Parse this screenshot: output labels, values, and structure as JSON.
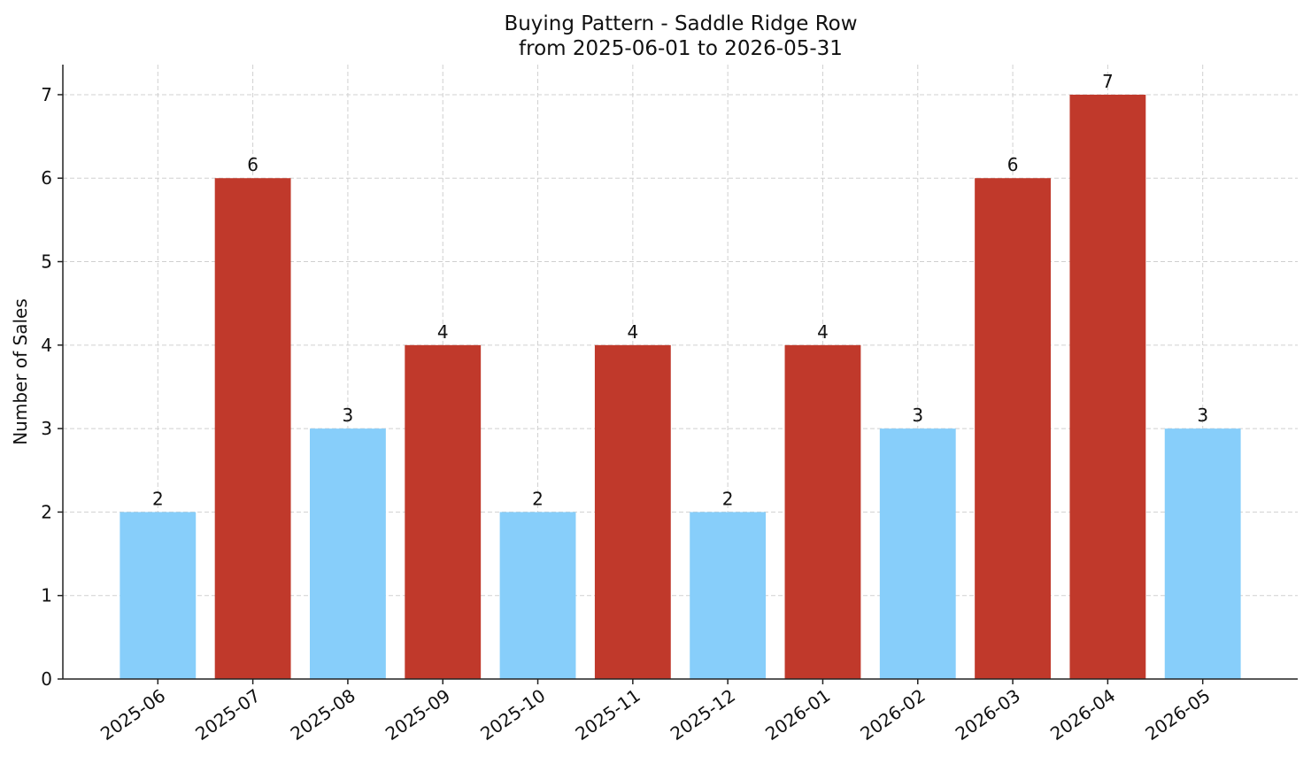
{
  "chart_data": {
    "type": "bar",
    "title": "Buying Pattern - Saddle Ridge Row",
    "subtitle": "from 2025-06-01 to 2026-05-31",
    "y_label": "Number of Sales",
    "categories": [
      "2025-06",
      "2025-07",
      "2025-08",
      "2025-09",
      "2025-10",
      "2025-11",
      "2025-12",
      "2026-01",
      "2026-02",
      "2026-03",
      "2026-04",
      "2026-05"
    ],
    "values": [
      2,
      6,
      3,
      4,
      2,
      4,
      2,
      4,
      3,
      6,
      7,
      3
    ],
    "colors": [
      "#87cefa",
      "#c0392b",
      "#87cefa",
      "#c0392b",
      "#87cefa",
      "#c0392b",
      "#87cefa",
      "#c0392b",
      "#87cefa",
      "#c0392b",
      "#c0392b",
      "#87cefa"
    ],
    "ylim": [
      0,
      7.36
    ],
    "yticks": [
      0,
      1,
      2,
      3,
      4,
      5,
      6,
      7
    ],
    "grid": true
  }
}
